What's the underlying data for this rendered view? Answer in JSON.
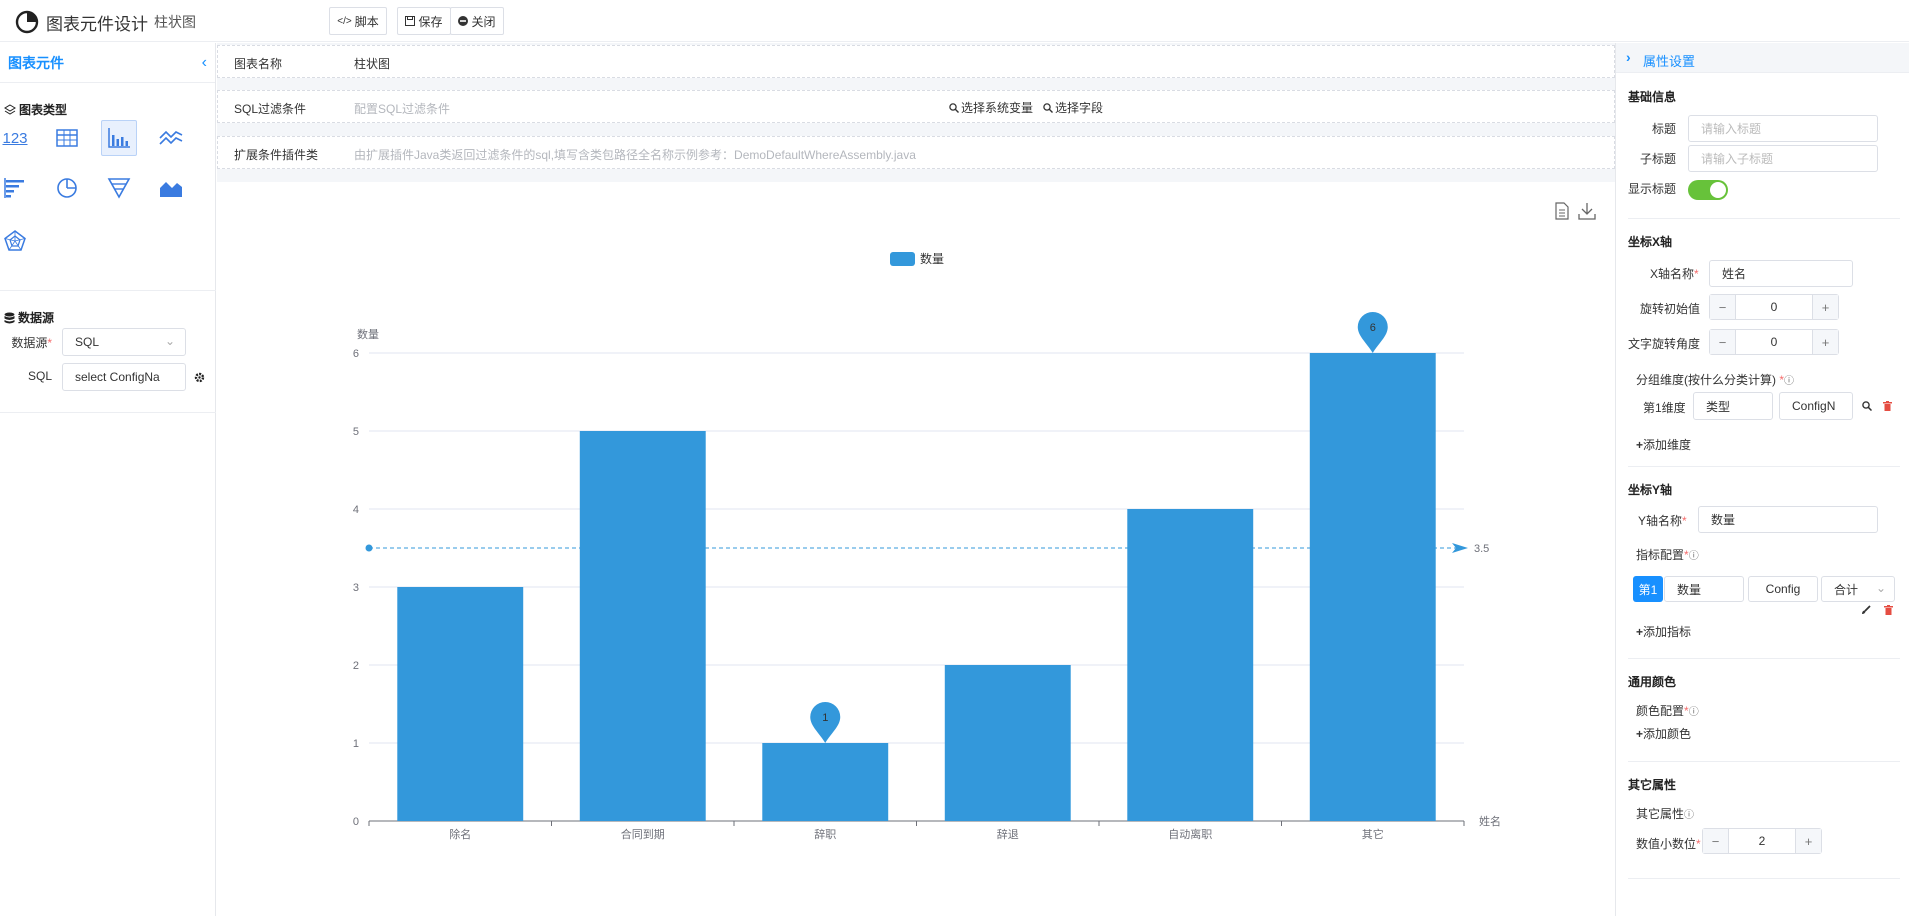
{
  "header": {
    "title": "图表元件设计",
    "subtitle": "柱状图",
    "script_button": "脚本",
    "save_button": "保存",
    "close_button": "关闭"
  },
  "left": {
    "title": "图表元件",
    "chart_types_title": "图表类型",
    "number_icon_text": "123",
    "datasource_title": "数据源",
    "datasource_label": "数据源",
    "datasource_value": "SQL",
    "sql_label": "SQL",
    "sql_value": "select ConfigNa"
  },
  "main": {
    "name_label": "图表名称",
    "name_value": "柱状图",
    "sql_filter_label": "SQL过滤条件",
    "sql_filter_placeholder": "配置SQL过滤条件",
    "select_sys_var": "选择系统变量",
    "select_field": "选择字段",
    "ext_label": "扩展条件插件类",
    "ext_placeholder": "由扩展插件Java类返回过滤条件的sql,填写含类包路径全名称示例参考：DemoDefaultWhereAssembly.java"
  },
  "right": {
    "title": "属性设置",
    "basic_info": "基础信息",
    "title_label": "标题",
    "title_placeholder": "请输入标题",
    "subtitle_label": "子标题",
    "subtitle_placeholder": "请输入子标题",
    "show_title_label": "显示标题",
    "x_axis_section": "坐标X轴",
    "x_name_label": "X轴名称",
    "x_name_value": "姓名",
    "rotate_start_label": "旋转初始值",
    "rotate_start_value": "0",
    "text_rotate_label": "文字旋转角度",
    "text_rotate_value": "0",
    "group_dim_label": "分组维度(按什么分类计算)",
    "dim1_label": "第1维度",
    "dim1_type": "类型",
    "dim1_field": "ConfigN",
    "add_dim": "添加维度",
    "y_axis_section": "坐标Y轴",
    "y_name_label": "Y轴名称",
    "y_name_value": "数量",
    "metric_config_label": "指标配置",
    "metric_index": "第1",
    "metric_name": "数量",
    "metric_field": "Config",
    "metric_agg": "合计",
    "add_metric": "添加指标",
    "common_color_section": "通用颜色",
    "color_config_label": "颜色配置",
    "add_color": "添加颜色",
    "other_section": "其它属性",
    "other_label": "其它属性",
    "decimal_label": "数值小数位",
    "decimal_value": "2"
  },
  "chart_data": {
    "type": "bar",
    "legend": [
      "数量"
    ],
    "categories": [
      "除名",
      "合同到期",
      "辞职",
      "辞退",
      "自动离职",
      "其它"
    ],
    "series": [
      {
        "name": "数量",
        "values": [
          3,
          5,
          1,
          2,
          4,
          6
        ],
        "color": "#3398db"
      }
    ],
    "xlabel": "姓名",
    "ylabel": "数量",
    "ylim": [
      0,
      6
    ],
    "yticks": [
      0,
      1,
      2,
      3,
      4,
      5,
      6
    ],
    "mark_points": [
      {
        "label": "6",
        "category": "其它",
        "value": 6
      },
      {
        "label": "1",
        "category": "辞职",
        "value": 1
      }
    ],
    "mark_line": {
      "label": "3.5",
      "value": 3.5
    },
    "grid": true,
    "legend_position": "top-center"
  }
}
